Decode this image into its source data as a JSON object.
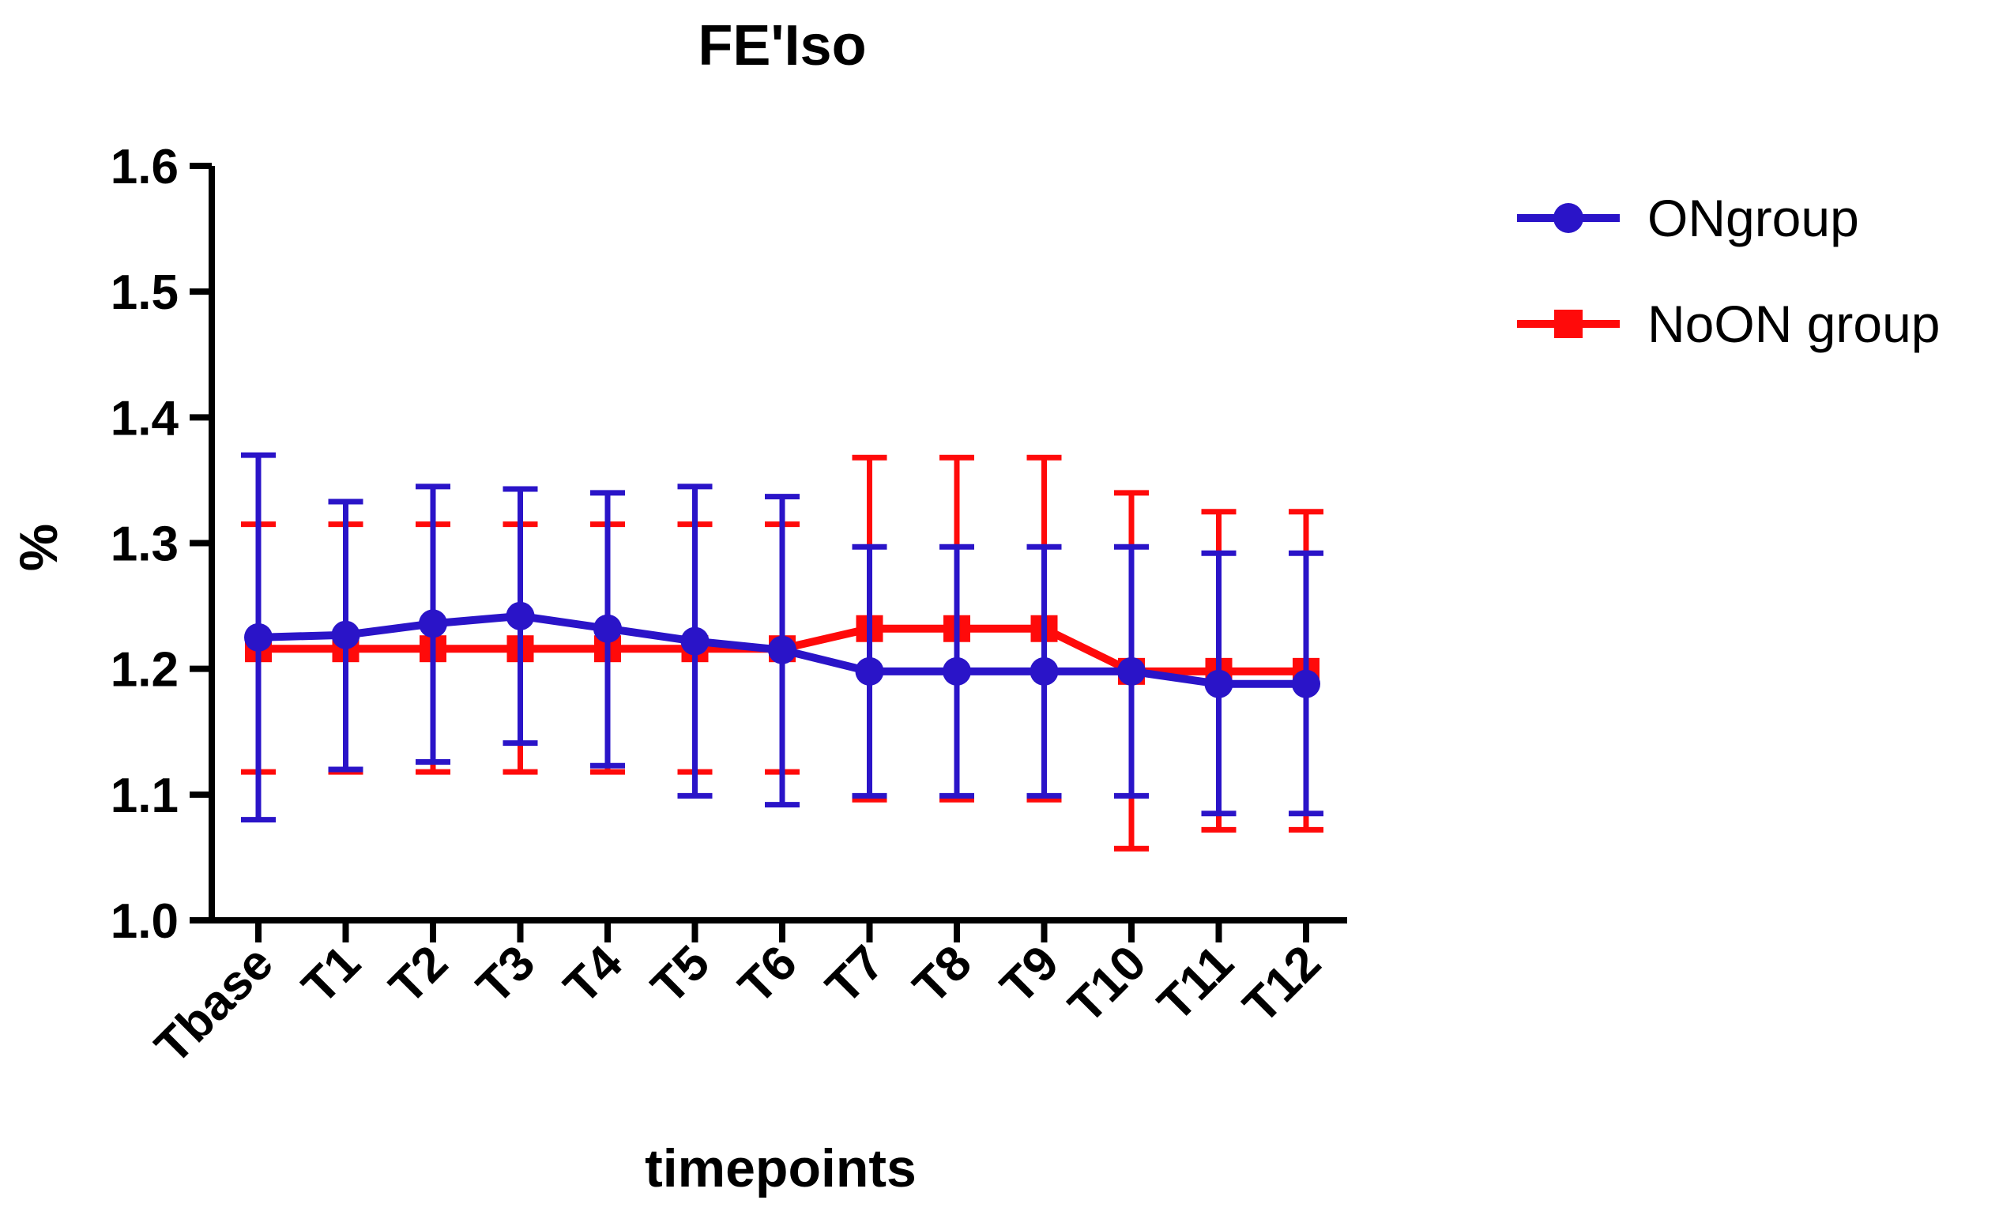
{
  "chart_data": {
    "type": "line",
    "title": "FE'Iso",
    "xlabel": "timepoints",
    "ylabel": "%",
    "ylim": [
      1.0,
      1.6
    ],
    "yticks": [
      "1.0",
      "1.1",
      "1.2",
      "1.3",
      "1.4",
      "1.5",
      "1.6"
    ],
    "categories": [
      "Tbase",
      "T1",
      "T2",
      "T3",
      "T4",
      "T5",
      "T6",
      "T7",
      "T8",
      "T9",
      "T10",
      "T11",
      "T12"
    ],
    "legend_position": "top-right",
    "series": [
      {
        "name": "ONgroup",
        "color": "#2a14c8",
        "marker": "circle",
        "values": [
          1.225,
          1.227,
          1.236,
          1.242,
          1.232,
          1.222,
          1.215,
          1.198,
          1.198,
          1.198,
          1.198,
          1.188,
          1.188
        ],
        "upper": [
          1.37,
          1.333,
          1.345,
          1.343,
          1.34,
          1.345,
          1.337,
          1.297,
          1.297,
          1.297,
          1.297,
          1.292,
          1.292
        ],
        "lower": [
          1.08,
          1.12,
          1.126,
          1.141,
          1.123,
          1.099,
          1.092,
          1.099,
          1.099,
          1.099,
          1.099,
          1.085,
          1.085
        ]
      },
      {
        "name": "NoON group",
        "color": "#ff0a0a",
        "marker": "square",
        "values": [
          1.216,
          1.216,
          1.216,
          1.216,
          1.216,
          1.216,
          1.216,
          1.232,
          1.232,
          1.232,
          1.198,
          1.198,
          1.198
        ],
        "upper": [
          1.315,
          1.315,
          1.315,
          1.315,
          1.315,
          1.315,
          1.315,
          1.368,
          1.368,
          1.368,
          1.34,
          1.325,
          1.325
        ],
        "lower": [
          1.118,
          1.118,
          1.118,
          1.118,
          1.118,
          1.118,
          1.118,
          1.096,
          1.096,
          1.096,
          1.057,
          1.072,
          1.072
        ]
      }
    ]
  }
}
